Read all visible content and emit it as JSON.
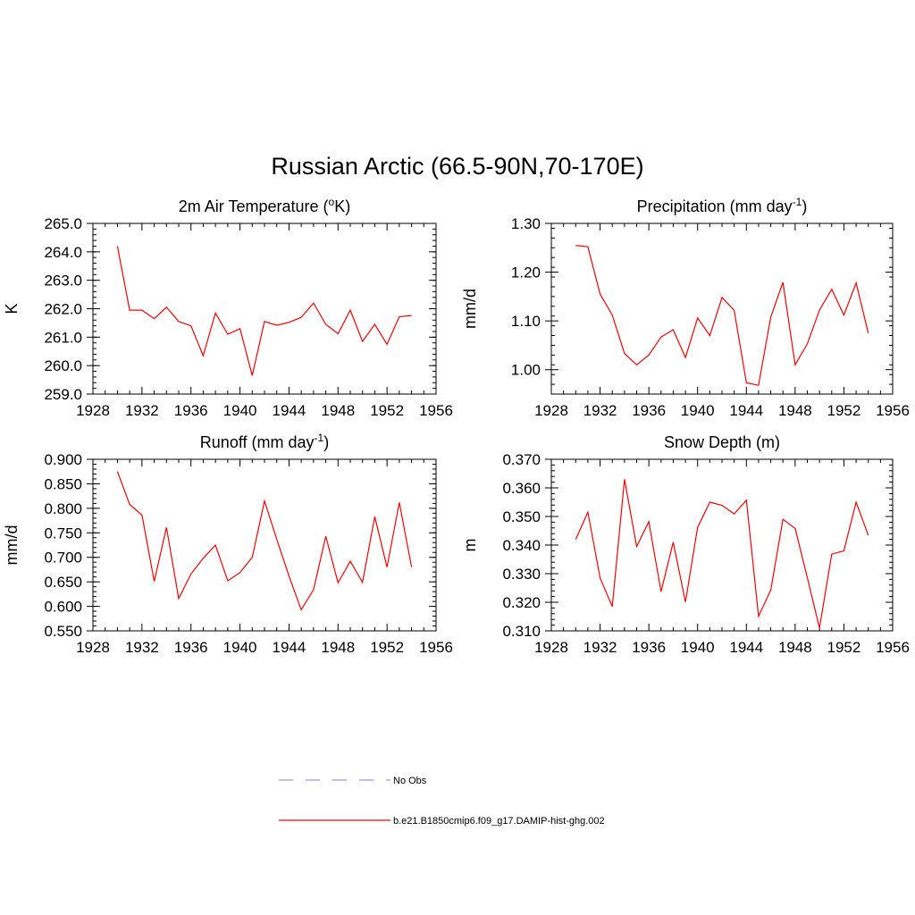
{
  "figure": {
    "title": "Russian Arctic (66.5-90N,70-170E)"
  },
  "legend": {
    "items": [
      {
        "label": "No Obs",
        "color": "#9999dd",
        "dash": "dashed"
      },
      {
        "label": "b.e21.B1850cmip6.f09_g17.DAMIP-hist-ghg.002",
        "color": "#ff0000",
        "dash": "solid"
      }
    ]
  },
  "chart_data": [
    {
      "type": "line",
      "title": "2m Air Temperature (",
      "title_mid": "o",
      "title_end": "K)",
      "ylabel": "K",
      "xlim": [
        1928,
        1956
      ],
      "xticks": [
        1928,
        1932,
        1936,
        1940,
        1944,
        1948,
        1952,
        1956
      ],
      "ylim": [
        259.0,
        265.0
      ],
      "yticks": [
        "259.0",
        "260.0",
        "261.0",
        "262.0",
        "263.0",
        "264.0",
        "265.0"
      ],
      "series": [
        {
          "color": "#ff0000",
          "x": [
            1930,
            1931,
            1932,
            1933,
            1934,
            1935,
            1936,
            1937,
            1938,
            1939,
            1940,
            1941,
            1942,
            1943,
            1944,
            1945,
            1946,
            1947,
            1948,
            1949,
            1950,
            1951,
            1952,
            1953,
            1954
          ],
          "y": [
            264.2,
            261.95,
            261.95,
            261.65,
            262.05,
            261.55,
            261.4,
            260.35,
            261.85,
            261.1,
            261.3,
            259.65,
            261.55,
            261.42,
            261.52,
            261.7,
            262.2,
            261.45,
            261.12,
            261.95,
            260.85,
            261.45,
            260.75,
            261.72,
            261.76
          ]
        }
      ]
    },
    {
      "type": "line",
      "title": "Precipitation (mm day",
      "title_mid": "-1",
      "title_end": ")",
      "ylabel": "mm/d",
      "xlim": [
        1928,
        1956
      ],
      "xticks": [
        1928,
        1932,
        1936,
        1940,
        1944,
        1948,
        1952,
        1956
      ],
      "ylim": [
        0.95,
        1.3
      ],
      "yticks": [
        "1.00",
        "1.10",
        "1.20",
        "1.30"
      ],
      "series": [
        {
          "color": "#ff0000",
          "x": [
            1930,
            1931,
            1932,
            1933,
            1934,
            1935,
            1936,
            1937,
            1938,
            1939,
            1940,
            1941,
            1942,
            1943,
            1944,
            1945,
            1946,
            1947,
            1948,
            1949,
            1950,
            1951,
            1952,
            1953,
            1954
          ],
          "y": [
            1.255,
            1.252,
            1.155,
            1.112,
            1.033,
            1.01,
            1.03,
            1.067,
            1.082,
            1.025,
            1.106,
            1.07,
            1.148,
            1.122,
            0.973,
            0.968,
            1.108,
            1.179,
            1.01,
            1.053,
            1.122,
            1.165,
            1.112,
            1.178,
            1.075
          ]
        }
      ]
    },
    {
      "type": "line",
      "title": "Runoff (mm day",
      "title_mid": "-1",
      "title_end": ")",
      "ylabel": "mm/d",
      "xlim": [
        1928,
        1956
      ],
      "xticks": [
        1928,
        1932,
        1936,
        1940,
        1944,
        1948,
        1952,
        1956
      ],
      "ylim": [
        0.55,
        0.9
      ],
      "yticks": [
        "0.550",
        "0.600",
        "0.650",
        "0.700",
        "0.750",
        "0.800",
        "0.850",
        "0.900"
      ],
      "series": [
        {
          "color": "#ff0000",
          "x": [
            1930,
            1931,
            1932,
            1933,
            1934,
            1935,
            1936,
            1937,
            1938,
            1939,
            1940,
            1941,
            1942,
            1943,
            1944,
            1945,
            1946,
            1947,
            1948,
            1949,
            1950,
            1951,
            1952,
            1953,
            1954
          ],
          "y": [
            0.875,
            0.808,
            0.786,
            0.651,
            0.761,
            0.616,
            0.666,
            0.698,
            0.725,
            0.652,
            0.669,
            0.7,
            0.815,
            0.737,
            0.662,
            0.593,
            0.634,
            0.743,
            0.648,
            0.692,
            0.649,
            0.783,
            0.68,
            0.812,
            0.68
          ]
        }
      ]
    },
    {
      "type": "line",
      "title": "Snow Depth (m)",
      "title_mid": "",
      "title_end": "",
      "ylabel": "m",
      "xlim": [
        1928,
        1956
      ],
      "xticks": [
        1928,
        1932,
        1936,
        1940,
        1944,
        1948,
        1952,
        1956
      ],
      "ylim": [
        0.31,
        0.37
      ],
      "yticks": [
        "0.310",
        "0.320",
        "0.330",
        "0.340",
        "0.350",
        "0.360",
        "0.370"
      ],
      "series": [
        {
          "color": "#ff0000",
          "x": [
            1930,
            1931,
            1932,
            1933,
            1934,
            1935,
            1936,
            1937,
            1938,
            1939,
            1940,
            1941,
            1942,
            1943,
            1944,
            1945,
            1946,
            1947,
            1948,
            1949,
            1950,
            1951,
            1952,
            1953,
            1954
          ],
          "y": [
            0.342,
            0.3515,
            0.3285,
            0.3185,
            0.363,
            0.3395,
            0.3482,
            0.3237,
            0.341,
            0.3201,
            0.3462,
            0.355,
            0.3539,
            0.3509,
            0.3557,
            0.3151,
            0.3243,
            0.349,
            0.3458,
            0.3286,
            0.311,
            0.3368,
            0.338,
            0.355,
            0.3434
          ]
        }
      ]
    }
  ]
}
